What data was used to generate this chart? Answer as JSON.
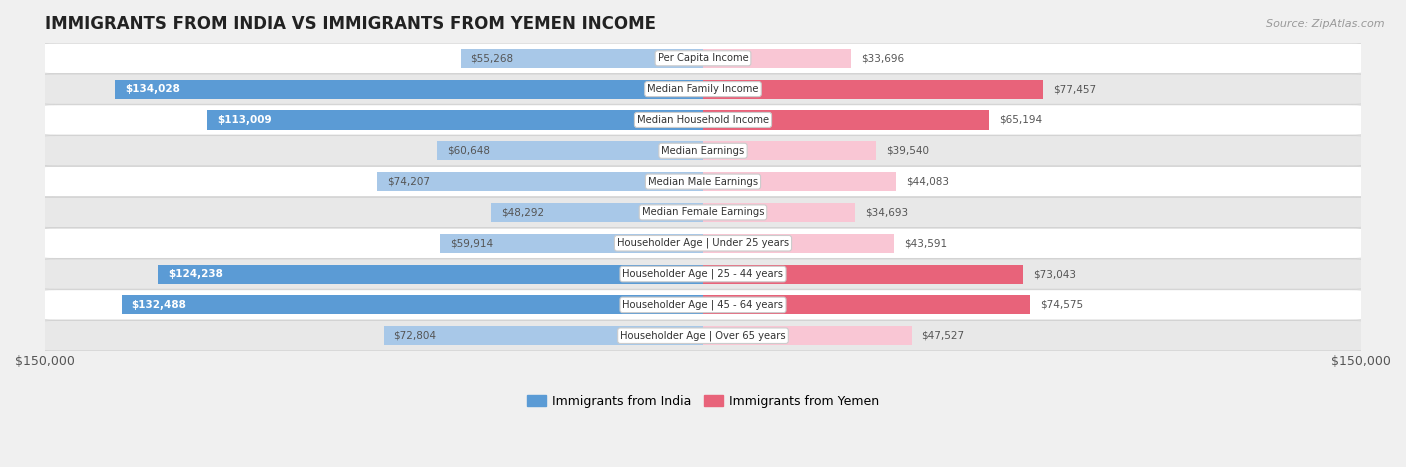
{
  "title": "IMMIGRANTS FROM INDIA VS IMMIGRANTS FROM YEMEN INCOME",
  "source": "Source: ZipAtlas.com",
  "categories": [
    "Per Capita Income",
    "Median Family Income",
    "Median Household Income",
    "Median Earnings",
    "Median Male Earnings",
    "Median Female Earnings",
    "Householder Age | Under 25 years",
    "Householder Age | 25 - 44 years",
    "Householder Age | 45 - 64 years",
    "Householder Age | Over 65 years"
  ],
  "india_values": [
    55268,
    134028,
    113009,
    60648,
    74207,
    48292,
    59914,
    124238,
    132488,
    72804
  ],
  "yemen_values": [
    33696,
    77457,
    65194,
    39540,
    44083,
    34693,
    43591,
    73043,
    74575,
    47527
  ],
  "india_labels": [
    "$55,268",
    "$134,028",
    "$113,009",
    "$60,648",
    "$74,207",
    "$48,292",
    "$59,914",
    "$124,238",
    "$132,488",
    "$72,804"
  ],
  "yemen_labels": [
    "$33,696",
    "$77,457",
    "$65,194",
    "$39,540",
    "$44,083",
    "$34,693",
    "$43,591",
    "$73,043",
    "$74,575",
    "$47,527"
  ],
  "india_color_light": "#a8c8e8",
  "india_color_dark": "#5b9bd5",
  "yemen_color_light": "#f9c6d4",
  "yemen_color_dark": "#e8637a",
  "india_threshold": 80000,
  "yemen_threshold": 60000,
  "max_val": 150000,
  "bar_height": 0.62,
  "background_color": "#f0f0f0",
  "row_color_odd": "#ffffff",
  "row_color_even": "#e8e8e8",
  "legend_india": "Immigrants from India",
  "legend_yemen": "Immigrants from Yemen"
}
